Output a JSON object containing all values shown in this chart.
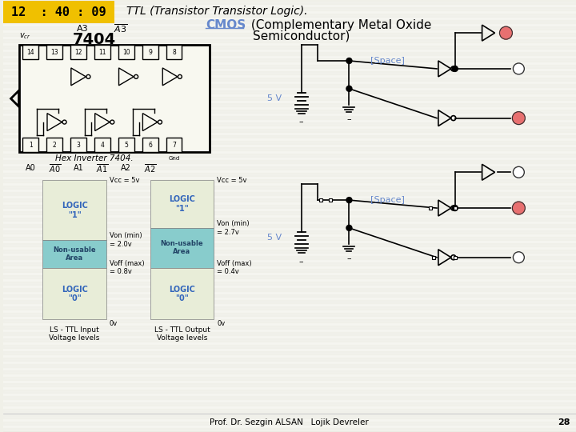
{
  "bg_color": "#f0f0e8",
  "title_ttl": "TTL (Transistor Transistor Logic).",
  "title_cmos": "CMOS",
  "title_cmos_rest": " (Complementary Metal Oxide",
  "title_line2": "Semiconductor)",
  "timestamp": "12  : 40 : 09",
  "timestamp_bg": "#f0c000",
  "footer_text": "Prof. Dr. Sezgin ALSAN   Lojik Devreler",
  "footer_page": "28",
  "chip_label": "7404",
  "space_label": "[Space]",
  "v5_label": "5 V",
  "red_fill": "#e87070",
  "white_fill": "#ffffff",
  "black": "#000000",
  "blue_label": "#6688cc",
  "logic1_color": "#e8edd8",
  "nouse_color": "#88cccc",
  "logic0_color": "#e8edd8",
  "hex_inverter_label": "Hex Inverter 7404."
}
